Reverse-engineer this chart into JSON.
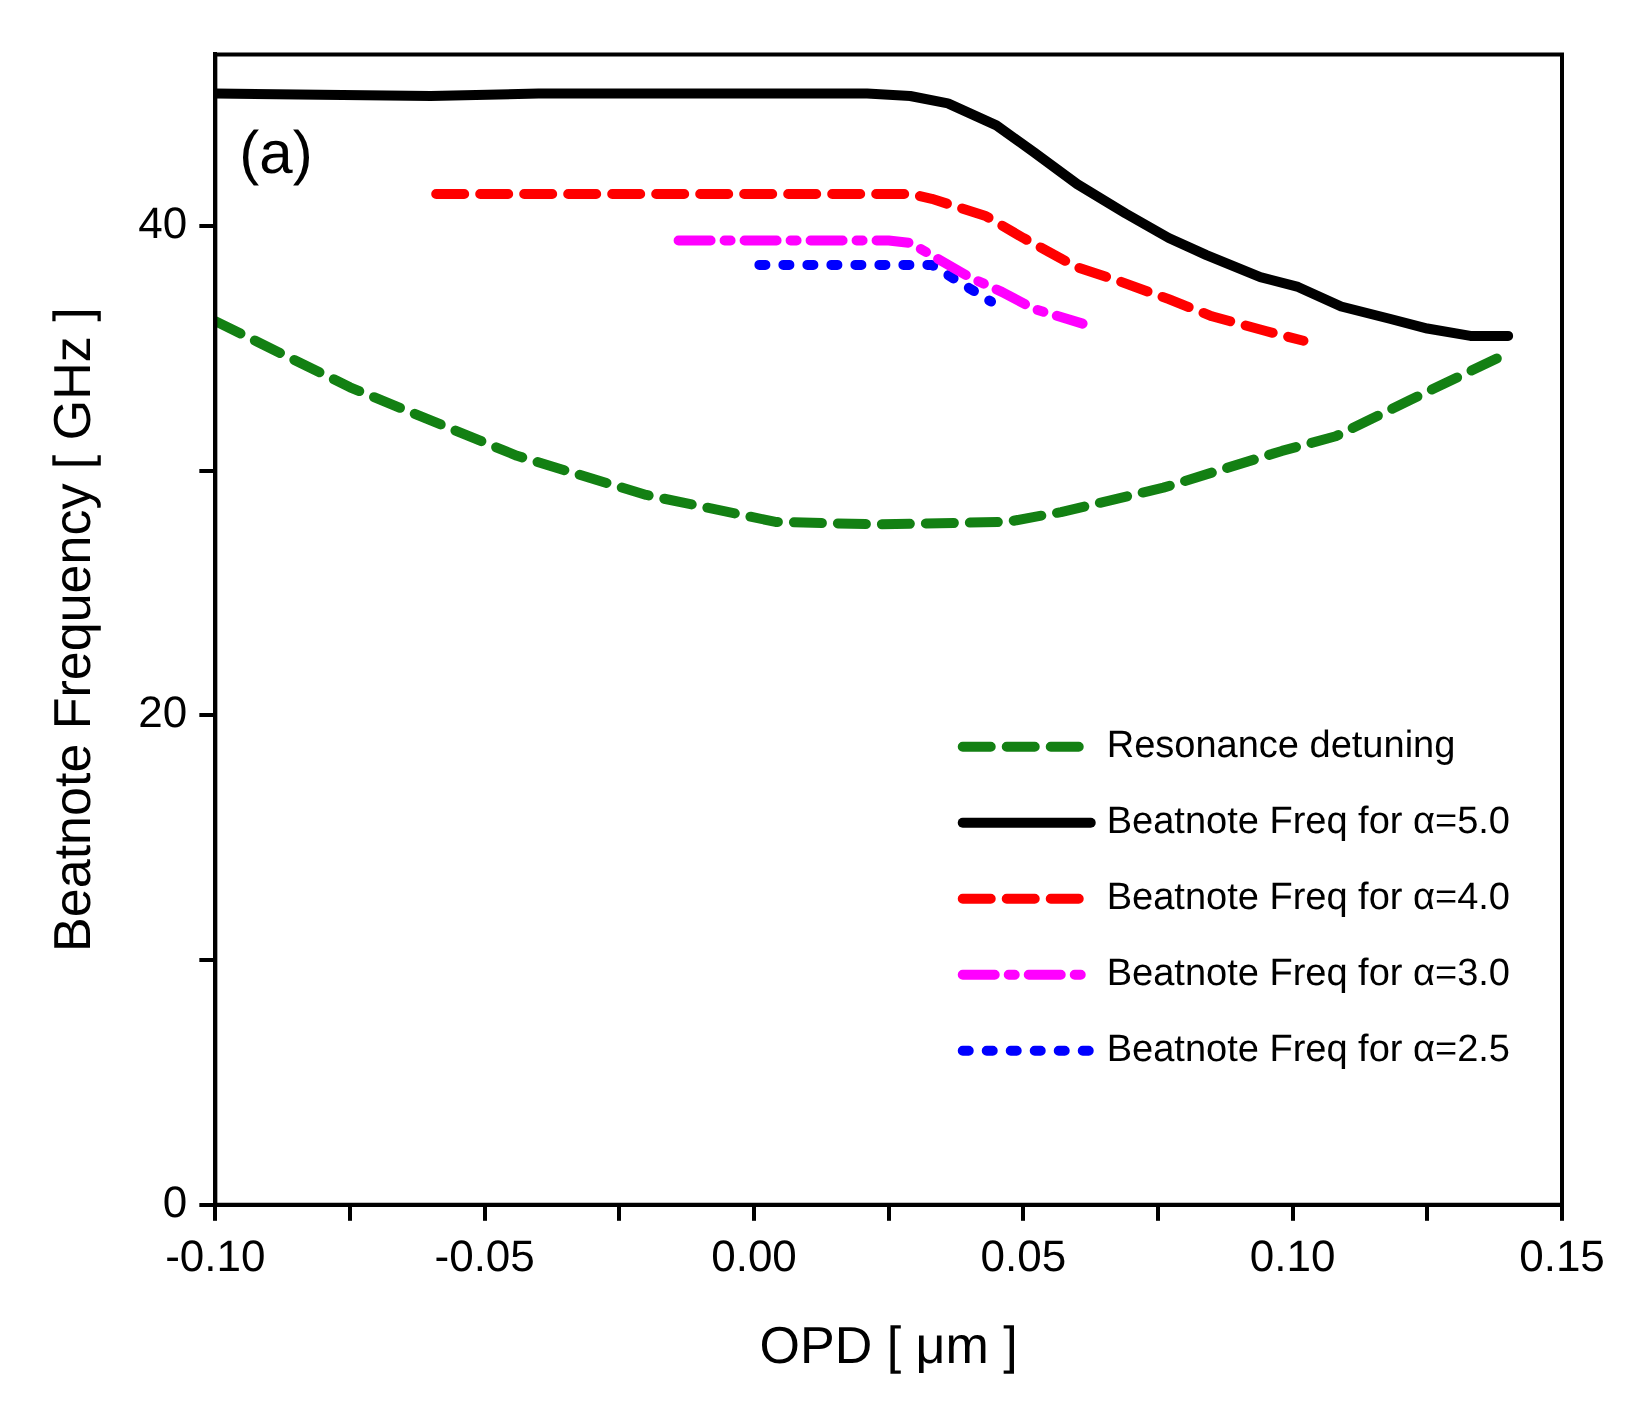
{
  "chart_data": {
    "type": "line",
    "xlabel": "OPD [ μm ]",
    "ylabel": "Beatnote Frequency [ GHz ]",
    "annotations": [
      "(a)"
    ],
    "xlim": [
      -0.1,
      0.15
    ],
    "ylim": [
      0,
      47
    ],
    "xticks": [
      {
        "value": -0.1,
        "label": "-0.10"
      },
      {
        "value": -0.075,
        "label": null
      },
      {
        "value": -0.05,
        "label": "-0.05"
      },
      {
        "value": -0.025,
        "label": null
      },
      {
        "value": 0,
        "label": "0.00"
      },
      {
        "value": 0.025,
        "label": null
      },
      {
        "value": 0.05,
        "label": "0.05"
      },
      {
        "value": 0.075,
        "label": null
      },
      {
        "value": 0.1,
        "label": "0.10"
      },
      {
        "value": 0.125,
        "label": null
      },
      {
        "value": 0.15,
        "label": "0.15"
      }
    ],
    "yticks": [
      0,
      {
        "value": 10,
        "label": null
      },
      20,
      {
        "value": 30,
        "label": null
      },
      40
    ],
    "grid": false,
    "legend": "bottom right",
    "marker": "none",
    "series": [
      {
        "name": "Resonance detuning",
        "color": "#138013",
        "line_style": "dashed",
        "x": [
          -0.1,
          -0.075,
          -0.044,
          -0.02,
          0.004,
          0.023,
          0.047,
          0.057,
          0.076,
          0.098,
          0.108,
          0.122,
          0.14
        ],
        "values": [
          36.1,
          33.4,
          30.6,
          29.0,
          27.9,
          27.8,
          27.9,
          28.3,
          29.3,
          30.8,
          31.4,
          32.9,
          34.8
        ]
      },
      {
        "name": "Beatnote Freq for α=5.0",
        "color": "#000000",
        "line_style": "solid",
        "x": [
          -0.1,
          -0.06,
          -0.04,
          0.021,
          0.029,
          0.036,
          0.045,
          0.052,
          0.06,
          0.069,
          0.077,
          0.084,
          0.094,
          0.101,
          0.109,
          0.118,
          0.125,
          0.133,
          0.14
        ],
        "values": [
          45.4,
          45.3,
          45.4,
          45.4,
          45.3,
          45.0,
          44.1,
          43.0,
          41.7,
          40.5,
          39.5,
          38.8,
          37.9,
          37.5,
          36.7,
          36.2,
          35.8,
          35.5,
          35.5
        ]
      },
      {
        "name": "Beatnote Freq for α=4.0",
        "color": "#ff0000",
        "line_style": "dashed",
        "x": [
          -0.059,
          0.029,
          0.033,
          0.043,
          0.05,
          0.06,
          0.067,
          0.077,
          0.085,
          0.095,
          0.102
        ],
        "values": [
          41.3,
          41.3,
          41.1,
          40.4,
          39.5,
          38.3,
          37.8,
          37.0,
          36.3,
          35.7,
          35.3
        ]
      },
      {
        "name": "Beatnote Freq for α=3.0",
        "color": "#ff00ff",
        "line_style": "dashdot",
        "x": [
          -0.014,
          0.025,
          0.029,
          0.04,
          0.046,
          0.052,
          0.061
        ],
        "values": [
          39.4,
          39.4,
          39.3,
          37.9,
          37.3,
          36.6,
          36.0
        ]
      },
      {
        "name": "Beatnote Freq for α=2.5",
        "color": "#0000ff",
        "line_style": "dotted",
        "x": [
          0.001,
          0.033,
          0.044
        ],
        "values": [
          38.4,
          38.4,
          36.9
        ]
      }
    ]
  }
}
